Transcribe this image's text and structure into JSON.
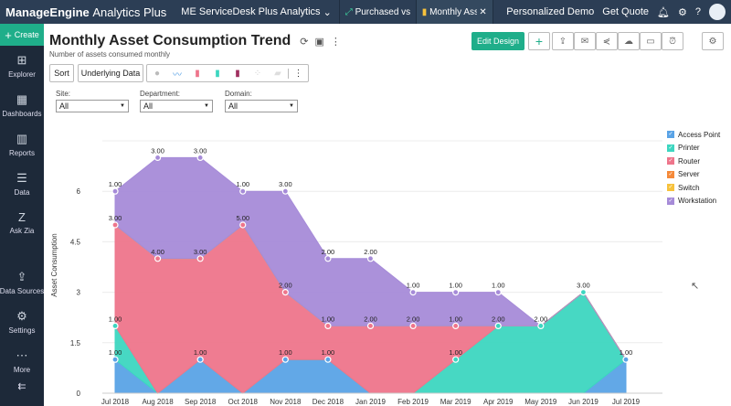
{
  "topbar": {
    "logo_brand": "ManageEngine",
    "logo_product": "Analytics Plus",
    "workspace": "ME ServiceDesk Plus Analytics",
    "tabs": [
      {
        "label": "Purchased vs..."
      },
      {
        "label": "Monthly Asse..."
      }
    ],
    "personalized_demo": "Personalized Demo",
    "get_quote": "Get Quote"
  },
  "sidebar": {
    "create": "Create",
    "items": [
      {
        "label": "Explorer",
        "icon": "⊞"
      },
      {
        "label": "Dashboards",
        "icon": "▦"
      },
      {
        "label": "Reports",
        "icon": "▥"
      },
      {
        "label": "Data",
        "icon": "☰"
      },
      {
        "label": "Ask Zia",
        "icon": "Z"
      },
      {
        "label": "Data Sources",
        "icon": "⇪"
      },
      {
        "label": "Settings",
        "icon": "⚙"
      },
      {
        "label": "More",
        "icon": "⋯"
      }
    ]
  },
  "report": {
    "title": "Monthly Asset Consumption Trend",
    "subtitle": "Number of assets consumed monthly",
    "sort": "Sort",
    "underlying_data": "Underlying Data",
    "edit_design": "Edit Design"
  },
  "filters": [
    {
      "label": "Site:",
      "value": "All"
    },
    {
      "label": "Department:",
      "value": "All"
    },
    {
      "label": "Domain:",
      "value": "All"
    }
  ],
  "colors": {
    "accent": "#1fae8a",
    "topbar": "#2c3e55"
  },
  "chart_data": {
    "type": "area",
    "stacked": true,
    "ylabel": "Asset Consumption",
    "ylim": [
      0,
      7.5
    ],
    "yticks": [
      "0",
      "1.5",
      "3",
      "4.5",
      "6"
    ],
    "ytick_values": [
      0,
      1.5,
      3,
      4.5,
      6
    ],
    "categories": [
      "Jul 2018",
      "Aug 2018",
      "Sep 2018",
      "Oct 2018",
      "Nov 2018",
      "Dec 2018",
      "Jan 2019",
      "Feb 2019",
      "Mar 2019",
      "Apr 2019",
      "May 2019",
      "Jun 2019",
      "Jul 2019"
    ],
    "legend_position": "right",
    "series": [
      {
        "name": "Access Point",
        "color": "#5aa3e6",
        "values": [
          1,
          0,
          1,
          0,
          1,
          1,
          0,
          0,
          0,
          0,
          0,
          0,
          1
        ]
      },
      {
        "name": "Printer",
        "color": "#3dd6c0",
        "values": [
          1,
          0,
          0,
          0,
          0,
          0,
          0,
          0,
          1,
          2,
          2,
          3,
          0
        ]
      },
      {
        "name": "Router",
        "color": "#ee758b",
        "values": [
          3,
          4,
          3,
          5,
          2,
          1,
          2,
          2,
          1,
          0,
          0,
          0,
          0
        ]
      },
      {
        "name": "Server",
        "color": "#f58a3a",
        "values": [
          0,
          0,
          0,
          0,
          0,
          0,
          0,
          0,
          0,
          0,
          0,
          0,
          0
        ]
      },
      {
        "name": "Switch",
        "color": "#f7c23c",
        "values": [
          0,
          0,
          0,
          0,
          0,
          0,
          0,
          0,
          0,
          0,
          0,
          0,
          0
        ]
      },
      {
        "name": "Workstation",
        "color": "#a68bd8",
        "values": [
          1,
          3,
          3,
          1,
          3,
          2,
          2,
          1,
          1,
          1,
          0,
          0,
          0
        ]
      }
    ]
  }
}
